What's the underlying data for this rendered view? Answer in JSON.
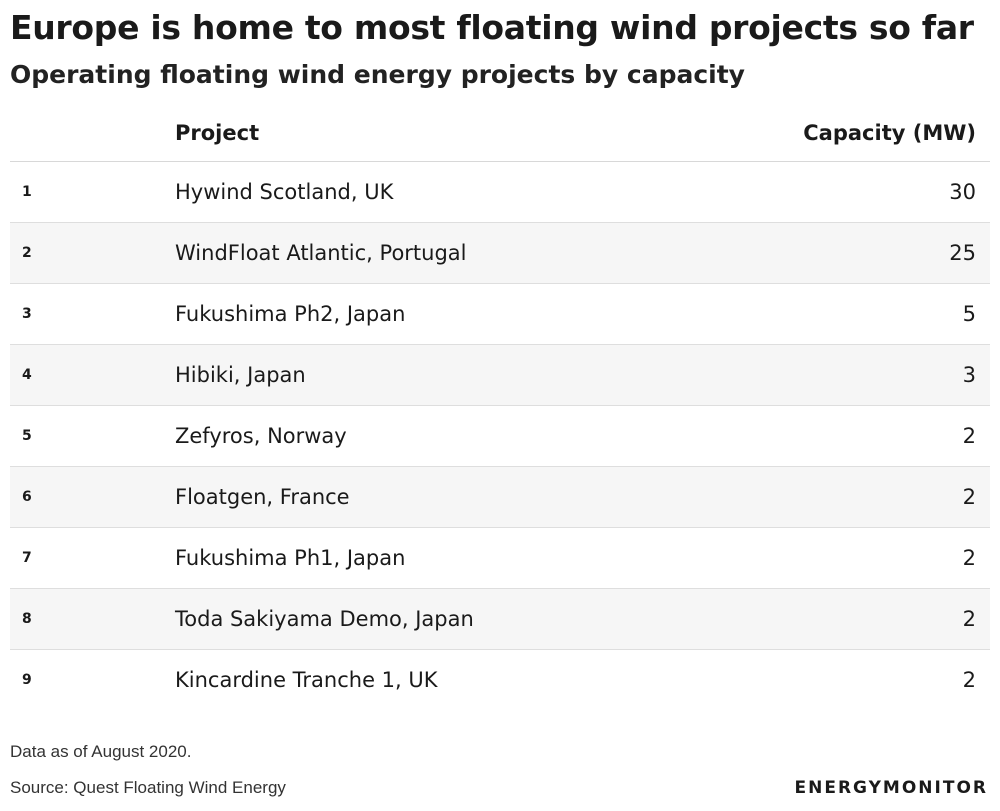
{
  "title": "Europe is home to most floating wind projects so far",
  "subtitle": "Operating floating wind energy projects by capacity",
  "chart_data": {
    "type": "table",
    "columns": [
      "",
      "Project",
      "Capacity (MW)"
    ],
    "rows": [
      {
        "rank": "1",
        "project": "Hywind Scotland, UK",
        "capacity": 30
      },
      {
        "rank": "2",
        "project": "WindFloat Atlantic, Portugal",
        "capacity": 25
      },
      {
        "rank": "3",
        "project": "Fukushima Ph2, Japan",
        "capacity": 5
      },
      {
        "rank": "4",
        "project": "Hibiki, Japan",
        "capacity": 3
      },
      {
        "rank": "5",
        "project": "Zefyros, Norway",
        "capacity": 2
      },
      {
        "rank": "6",
        "project": "Floatgen, France",
        "capacity": 2
      },
      {
        "rank": "7",
        "project": "Fukushima Ph1, Japan",
        "capacity": 2
      },
      {
        "rank": "8",
        "project": "Toda Sakiyama Demo, Japan",
        "capacity": 2
      },
      {
        "rank": "9",
        "project": "Kincardine Tranche 1, UK",
        "capacity": 2
      }
    ]
  },
  "footer": {
    "note": "Data as of August 2020.",
    "source": "Source: Quest Floating Wind Energy",
    "logo": "ENERGYMONITOR"
  }
}
